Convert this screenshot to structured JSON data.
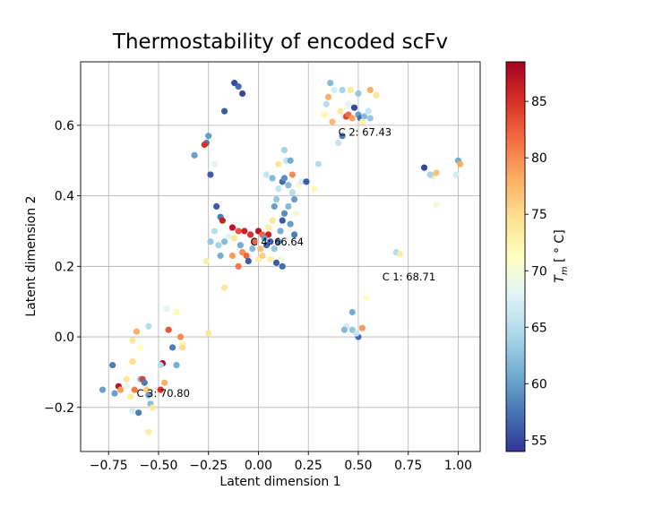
{
  "chart_data": {
    "type": "scatter",
    "title": "Thermostability of encoded scFv",
    "xlabel": "Latent dimension 1",
    "ylabel": "Latent dimension 2",
    "xlim": [
      -0.89,
      1.11
    ],
    "ylim": [
      -0.325,
      0.78
    ],
    "xticks": [
      -0.75,
      -0.5,
      -0.25,
      0.0,
      0.25,
      0.5,
      0.75,
      1.0
    ],
    "xtick_labels": [
      "−0.75",
      "−0.50",
      "−0.25",
      "0.00",
      "0.25",
      "0.50",
      "0.75",
      "1.00"
    ],
    "yticks": [
      -0.2,
      0.0,
      0.2,
      0.4,
      0.6
    ],
    "ytick_labels": [
      "−0.2",
      "0.0",
      "0.2",
      "0.4",
      "0.6"
    ],
    "grid": true,
    "colorbar": {
      "label": "T_m [°C]",
      "label_main": "T",
      "label_sub": "m",
      "label_rest": " [ ° C]",
      "range": [
        54,
        88.5
      ],
      "ticks": [
        55,
        60,
        65,
        70,
        75,
        80,
        85
      ],
      "colormap": "RdYlBu_r",
      "colors": [
        "#313695",
        "#4575b4",
        "#74add1",
        "#abd9e9",
        "#e0f3f8",
        "#ffffbf",
        "#fee090",
        "#fdae61",
        "#f46d43",
        "#d73027",
        "#a50026"
      ]
    },
    "annotations": [
      {
        "text": "C 2: 67.43",
        "x": 0.4,
        "y": 0.58
      },
      {
        "text": "C 4: 66.64",
        "x": -0.04,
        "y": 0.27
      },
      {
        "text": "C 1: 68.71",
        "x": 0.62,
        "y": 0.17
      },
      {
        "text": "C 3: 70.80",
        "x": -0.61,
        "y": -0.16
      }
    ],
    "points": [
      {
        "x": -0.12,
        "y": 0.72,
        "v": 55
      },
      {
        "x": -0.1,
        "y": 0.71,
        "v": 57
      },
      {
        "x": -0.08,
        "y": 0.69,
        "v": 55
      },
      {
        "x": -0.17,
        "y": 0.64,
        "v": 56
      },
      {
        "x": -0.25,
        "y": 0.57,
        "v": 60
      },
      {
        "x": -0.26,
        "y": 0.55,
        "v": 58
      },
      {
        "x": -0.27,
        "y": 0.545,
        "v": 85
      },
      {
        "x": -0.32,
        "y": 0.515,
        "v": 60
      },
      {
        "x": -0.24,
        "y": 0.46,
        "v": 56
      },
      {
        "x": -0.22,
        "y": 0.49,
        "v": 68
      },
      {
        "x": 0.36,
        "y": 0.72,
        "v": 62
      },
      {
        "x": 0.38,
        "y": 0.7,
        "v": 67
      },
      {
        "x": 0.35,
        "y": 0.68,
        "v": 78
      },
      {
        "x": 0.34,
        "y": 0.66,
        "v": 65
      },
      {
        "x": 0.42,
        "y": 0.7,
        "v": 64
      },
      {
        "x": 0.46,
        "y": 0.7,
        "v": 74
      },
      {
        "x": 0.5,
        "y": 0.69,
        "v": 63
      },
      {
        "x": 0.56,
        "y": 0.7,
        "v": 78
      },
      {
        "x": 0.59,
        "y": 0.685,
        "v": 74
      },
      {
        "x": 0.41,
        "y": 0.64,
        "v": 74
      },
      {
        "x": 0.43,
        "y": 0.625,
        "v": 67
      },
      {
        "x": 0.44,
        "y": 0.625,
        "v": 84
      },
      {
        "x": 0.45,
        "y": 0.63,
        "v": 82
      },
      {
        "x": 0.47,
        "y": 0.62,
        "v": 79
      },
      {
        "x": 0.48,
        "y": 0.65,
        "v": 55
      },
      {
        "x": 0.5,
        "y": 0.63,
        "v": 60
      },
      {
        "x": 0.51,
        "y": 0.62,
        "v": 57
      },
      {
        "x": 0.53,
        "y": 0.625,
        "v": 62
      },
      {
        "x": 0.55,
        "y": 0.64,
        "v": 66
      },
      {
        "x": 0.56,
        "y": 0.62,
        "v": 63
      },
      {
        "x": 0.33,
        "y": 0.63,
        "v": 72
      },
      {
        "x": 0.4,
        "y": 0.55,
        "v": 66
      },
      {
        "x": 0.42,
        "y": 0.57,
        "v": 58
      },
      {
        "x": 0.52,
        "y": 0.61,
        "v": 73
      },
      {
        "x": 0.37,
        "y": 0.61,
        "v": 77
      },
      {
        "x": 0.45,
        "y": 0.66,
        "v": 68
      },
      {
        "x": 0.83,
        "y": 0.48,
        "v": 55
      },
      {
        "x": 0.87,
        "y": 0.455,
        "v": 73
      },
      {
        "x": 0.89,
        "y": 0.465,
        "v": 77
      },
      {
        "x": 0.86,
        "y": 0.46,
        "v": 64
      },
      {
        "x": 1.0,
        "y": 0.5,
        "v": 61
      },
      {
        "x": 1.01,
        "y": 0.49,
        "v": 78
      },
      {
        "x": 0.99,
        "y": 0.46,
        "v": 67
      },
      {
        "x": 0.89,
        "y": 0.375,
        "v": 70
      },
      {
        "x": 0.69,
        "y": 0.24,
        "v": 65
      },
      {
        "x": 0.71,
        "y": 0.235,
        "v": 73
      },
      {
        "x": 0.54,
        "y": 0.11,
        "v": 71
      },
      {
        "x": 0.47,
        "y": 0.07,
        "v": 61
      },
      {
        "x": 0.44,
        "y": 0.03,
        "v": 67
      },
      {
        "x": 0.43,
        "y": 0.02,
        "v": 62
      },
      {
        "x": 0.47,
        "y": 0.02,
        "v": 63
      },
      {
        "x": 0.52,
        "y": 0.025,
        "v": 79
      },
      {
        "x": 0.5,
        "y": 0.0,
        "v": 57
      },
      {
        "x": 0.49,
        "y": 0.01,
        "v": 66
      },
      {
        "x": -0.21,
        "y": 0.37,
        "v": 56
      },
      {
        "x": -0.19,
        "y": 0.34,
        "v": 58
      },
      {
        "x": -0.18,
        "y": 0.33,
        "v": 86
      },
      {
        "x": -0.13,
        "y": 0.31,
        "v": 87
      },
      {
        "x": -0.1,
        "y": 0.3,
        "v": 83
      },
      {
        "x": -0.07,
        "y": 0.3,
        "v": 86
      },
      {
        "x": -0.04,
        "y": 0.29,
        "v": 85
      },
      {
        "x": 0.0,
        "y": 0.3,
        "v": 87
      },
      {
        "x": 0.02,
        "y": 0.29,
        "v": 82
      },
      {
        "x": 0.05,
        "y": 0.29,
        "v": 86
      },
      {
        "x": 0.04,
        "y": 0.26,
        "v": 57
      },
      {
        "x": -0.22,
        "y": 0.3,
        "v": 65
      },
      {
        "x": -0.24,
        "y": 0.27,
        "v": 63
      },
      {
        "x": -0.17,
        "y": 0.27,
        "v": 62
      },
      {
        "x": -0.15,
        "y": 0.285,
        "v": 68
      },
      {
        "x": -0.12,
        "y": 0.28,
        "v": 74
      },
      {
        "x": -0.09,
        "y": 0.26,
        "v": 61
      },
      {
        "x": -0.08,
        "y": 0.24,
        "v": 80
      },
      {
        "x": -0.06,
        "y": 0.23,
        "v": 82
      },
      {
        "x": -0.05,
        "y": 0.215,
        "v": 56
      },
      {
        "x": -0.1,
        "y": 0.2,
        "v": 81
      },
      {
        "x": -0.13,
        "y": 0.23,
        "v": 79
      },
      {
        "x": -0.19,
        "y": 0.23,
        "v": 61
      },
      {
        "x": -0.2,
        "y": 0.26,
        "v": 64
      },
      {
        "x": -0.26,
        "y": 0.215,
        "v": 73
      },
      {
        "x": -0.17,
        "y": 0.14,
        "v": 74
      },
      {
        "x": -0.25,
        "y": 0.01,
        "v": 74
      },
      {
        "x": 0.0,
        "y": 0.22,
        "v": 73
      },
      {
        "x": 0.01,
        "y": 0.25,
        "v": 77
      },
      {
        "x": 0.03,
        "y": 0.28,
        "v": 60
      },
      {
        "x": 0.06,
        "y": 0.27,
        "v": 56
      },
      {
        "x": 0.08,
        "y": 0.25,
        "v": 63
      },
      {
        "x": 0.1,
        "y": 0.27,
        "v": 58
      },
      {
        "x": 0.11,
        "y": 0.3,
        "v": 61
      },
      {
        "x": 0.12,
        "y": 0.33,
        "v": 56
      },
      {
        "x": 0.13,
        "y": 0.35,
        "v": 59
      },
      {
        "x": 0.15,
        "y": 0.37,
        "v": 62
      },
      {
        "x": 0.16,
        "y": 0.32,
        "v": 60
      },
      {
        "x": 0.18,
        "y": 0.29,
        "v": 58
      },
      {
        "x": 0.08,
        "y": 0.37,
        "v": 60
      },
      {
        "x": 0.09,
        "y": 0.39,
        "v": 63
      },
      {
        "x": 0.1,
        "y": 0.42,
        "v": 66
      },
      {
        "x": 0.12,
        "y": 0.44,
        "v": 57
      },
      {
        "x": 0.13,
        "y": 0.45,
        "v": 59
      },
      {
        "x": 0.15,
        "y": 0.43,
        "v": 62
      },
      {
        "x": 0.17,
        "y": 0.41,
        "v": 65
      },
      {
        "x": 0.18,
        "y": 0.39,
        "v": 60
      },
      {
        "x": 0.2,
        "y": 0.43,
        "v": 70
      },
      {
        "x": 0.22,
        "y": 0.44,
        "v": 67
      },
      {
        "x": 0.24,
        "y": 0.44,
        "v": 56
      },
      {
        "x": 0.13,
        "y": 0.53,
        "v": 64
      },
      {
        "x": 0.14,
        "y": 0.5,
        "v": 66
      },
      {
        "x": 0.16,
        "y": 0.5,
        "v": 61
      },
      {
        "x": 0.1,
        "y": 0.49,
        "v": 74
      },
      {
        "x": 0.07,
        "y": 0.45,
        "v": 62
      },
      {
        "x": 0.04,
        "y": 0.46,
        "v": 66
      },
      {
        "x": 0.17,
        "y": 0.46,
        "v": 80
      },
      {
        "x": 0.12,
        "y": 0.2,
        "v": 57
      },
      {
        "x": 0.11,
        "y": 0.22,
        "v": 70
      },
      {
        "x": 0.09,
        "y": 0.21,
        "v": 56
      },
      {
        "x": 0.06,
        "y": 0.22,
        "v": 73
      },
      {
        "x": 0.3,
        "y": 0.49,
        "v": 65
      },
      {
        "x": 0.28,
        "y": 0.42,
        "v": 72
      },
      {
        "x": 0.19,
        "y": 0.35,
        "v": 70
      },
      {
        "x": 0.07,
        "y": 0.33,
        "v": 74
      },
      {
        "x": 0.05,
        "y": 0.31,
        "v": 73
      },
      {
        "x": -0.02,
        "y": 0.27,
        "v": 82
      },
      {
        "x": 0.02,
        "y": 0.23,
        "v": 76
      },
      {
        "x": -0.03,
        "y": 0.25,
        "v": 62
      },
      {
        "x": -0.78,
        "y": -0.15,
        "v": 60
      },
      {
        "x": -0.73,
        "y": -0.08,
        "v": 58
      },
      {
        "x": -0.72,
        "y": -0.16,
        "v": 60
      },
      {
        "x": -0.7,
        "y": -0.14,
        "v": 87
      },
      {
        "x": -0.69,
        "y": -0.15,
        "v": 79
      },
      {
        "x": -0.66,
        "y": -0.12,
        "v": 74
      },
      {
        "x": -0.63,
        "y": -0.07,
        "v": 75
      },
      {
        "x": -0.63,
        "y": -0.01,
        "v": 74
      },
      {
        "x": -0.61,
        "y": 0.015,
        "v": 78
      },
      {
        "x": -0.59,
        "y": -0.03,
        "v": 71
      },
      {
        "x": -0.59,
        "y": -0.12,
        "v": 62
      },
      {
        "x": -0.58,
        "y": -0.12,
        "v": 84
      },
      {
        "x": -0.57,
        "y": -0.13,
        "v": 58
      },
      {
        "x": -0.56,
        "y": -0.15,
        "v": 76
      },
      {
        "x": -0.55,
        "y": -0.165,
        "v": 60
      },
      {
        "x": -0.54,
        "y": -0.19,
        "v": 62
      },
      {
        "x": -0.53,
        "y": -0.2,
        "v": 74
      },
      {
        "x": -0.55,
        "y": -0.27,
        "v": 73
      },
      {
        "x": -0.6,
        "y": -0.215,
        "v": 58
      },
      {
        "x": -0.63,
        "y": -0.21,
        "v": 67
      },
      {
        "x": -0.64,
        "y": -0.17,
        "v": 73
      },
      {
        "x": -0.62,
        "y": -0.15,
        "v": 81
      },
      {
        "x": -0.49,
        "y": -0.15,
        "v": 85
      },
      {
        "x": -0.48,
        "y": -0.075,
        "v": 88
      },
      {
        "x": -0.49,
        "y": -0.08,
        "v": 65
      },
      {
        "x": -0.47,
        "y": -0.13,
        "v": 78
      },
      {
        "x": -0.46,
        "y": 0.08,
        "v": 68
      },
      {
        "x": -0.45,
        "y": 0.02,
        "v": 83
      },
      {
        "x": -0.43,
        "y": -0.03,
        "v": 58
      },
      {
        "x": -0.41,
        "y": -0.08,
        "v": 61
      },
      {
        "x": -0.41,
        "y": 0.07,
        "v": 72
      },
      {
        "x": -0.39,
        "y": 0.0,
        "v": 80
      },
      {
        "x": -0.38,
        "y": -0.02,
        "v": 72
      },
      {
        "x": -0.38,
        "y": -0.03,
        "v": 75
      },
      {
        "x": -0.55,
        "y": 0.03,
        "v": 65
      },
      {
        "x": -0.66,
        "y": -0.14,
        "v": 69
      }
    ]
  }
}
